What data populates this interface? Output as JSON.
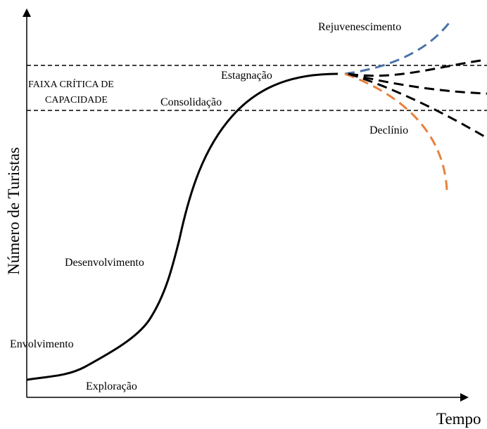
{
  "axes": {
    "y_label": "Número de Turistas",
    "x_label": "Tempo"
  },
  "band": {
    "lines": [
      "FAIXA CRÍTICA DE",
      "CAPACIDADE"
    ]
  },
  "stages": {
    "rejuvenation": "Rejuvenescimento",
    "stagnation": "Estagnação",
    "consolidation": "Consolidação",
    "decline": "Declínio",
    "development": "Desenvolvimento",
    "involvement": "Envolvimento",
    "exploration": "Exploração"
  }
}
